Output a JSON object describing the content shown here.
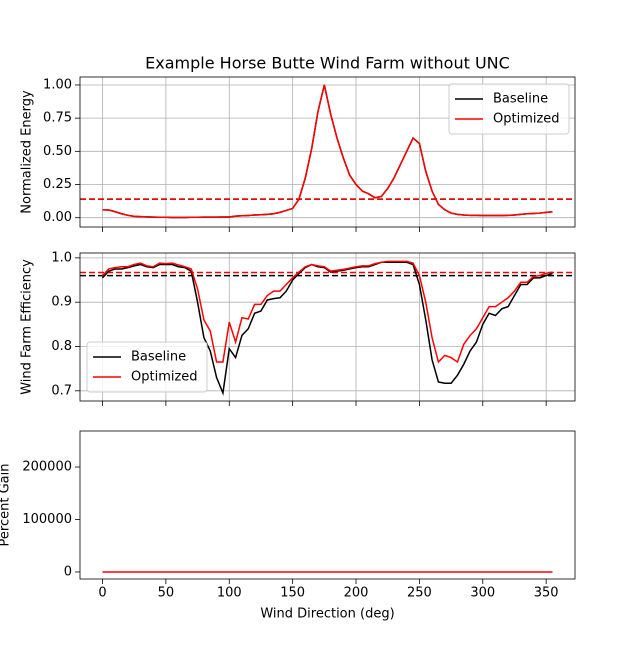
{
  "chart_data": [
    {
      "type": "line",
      "title": "Example Horse Butte Wind Farm without UNC",
      "ylabel": "Normalized Energy",
      "x": [
        0,
        5,
        10,
        15,
        20,
        25,
        30,
        35,
        40,
        45,
        50,
        55,
        60,
        65,
        70,
        75,
        80,
        85,
        90,
        95,
        100,
        105,
        110,
        115,
        120,
        125,
        130,
        135,
        140,
        145,
        150,
        155,
        160,
        165,
        170,
        175,
        180,
        185,
        190,
        195,
        200,
        205,
        210,
        215,
        220,
        225,
        230,
        235,
        240,
        245,
        250,
        255,
        260,
        265,
        270,
        275,
        280,
        285,
        290,
        295,
        300,
        305,
        310,
        315,
        320,
        325,
        330,
        335,
        340,
        345,
        350,
        355
      ],
      "series": [
        {
          "name": "Baseline",
          "color": "#000000",
          "values": [
            0.06,
            0.058,
            0.045,
            0.03,
            0.018,
            0.01,
            0.008,
            0.006,
            0.004,
            0.003,
            0.003,
            0.002,
            0.002,
            0.002,
            0.003,
            0.003,
            0.004,
            0.004,
            0.004,
            0.005,
            0.005,
            0.012,
            0.015,
            0.017,
            0.02,
            0.022,
            0.025,
            0.03,
            0.04,
            0.055,
            0.07,
            0.14,
            0.3,
            0.52,
            0.8,
            1.0,
            0.78,
            0.6,
            0.45,
            0.32,
            0.25,
            0.2,
            0.18,
            0.15,
            0.16,
            0.22,
            0.3,
            0.4,
            0.5,
            0.6,
            0.56,
            0.35,
            0.2,
            0.1,
            0.06,
            0.035,
            0.025,
            0.02,
            0.018,
            0.018,
            0.017,
            0.017,
            0.017,
            0.017,
            0.018,
            0.02,
            0.025,
            0.03,
            0.032,
            0.035,
            0.04,
            0.045
          ]
        },
        {
          "name": "Optimized",
          "color": "#ff0000",
          "values": [
            0.06,
            0.058,
            0.045,
            0.03,
            0.018,
            0.01,
            0.008,
            0.006,
            0.004,
            0.003,
            0.003,
            0.002,
            0.002,
            0.002,
            0.003,
            0.003,
            0.004,
            0.004,
            0.004,
            0.005,
            0.005,
            0.012,
            0.015,
            0.017,
            0.02,
            0.022,
            0.025,
            0.03,
            0.04,
            0.055,
            0.07,
            0.14,
            0.3,
            0.52,
            0.8,
            1.0,
            0.78,
            0.6,
            0.45,
            0.32,
            0.25,
            0.2,
            0.18,
            0.15,
            0.16,
            0.22,
            0.3,
            0.4,
            0.5,
            0.6,
            0.56,
            0.35,
            0.2,
            0.1,
            0.06,
            0.035,
            0.025,
            0.02,
            0.018,
            0.018,
            0.017,
            0.017,
            0.017,
            0.017,
            0.018,
            0.02,
            0.025,
            0.03,
            0.032,
            0.035,
            0.04,
            0.045
          ]
        }
      ],
      "hlines": [
        {
          "value": 0.14,
          "color": "#000000"
        },
        {
          "value": 0.14,
          "color": "#ff0000"
        }
      ],
      "xlim": [
        -17.75,
        372.75
      ],
      "xticks": [
        0,
        50,
        100,
        150,
        200,
        250,
        300,
        350
      ],
      "x_tick_labels": false,
      "ylim": [
        -0.07,
        1.06
      ],
      "yticks": [
        {
          "value": 0,
          "label": "0.00"
        },
        {
          "value": 0.25,
          "label": "0.25"
        },
        {
          "value": 0.5,
          "label": "0.50"
        },
        {
          "value": 0.75,
          "label": "0.75"
        },
        {
          "value": 1,
          "label": "1.00"
        }
      ],
      "grid": true,
      "legend": "upper right"
    },
    {
      "type": "line",
      "ylabel": "Wind Farm Efficiency",
      "x": [
        0,
        5,
        10,
        15,
        20,
        25,
        30,
        35,
        40,
        45,
        50,
        55,
        60,
        65,
        70,
        75,
        80,
        85,
        90,
        95,
        100,
        105,
        110,
        115,
        120,
        125,
        130,
        135,
        140,
        145,
        150,
        155,
        160,
        165,
        170,
        175,
        180,
        185,
        190,
        195,
        200,
        205,
        210,
        215,
        220,
        225,
        230,
        235,
        240,
        245,
        250,
        255,
        260,
        265,
        270,
        275,
        280,
        285,
        290,
        295,
        300,
        305,
        310,
        315,
        320,
        325,
        330,
        335,
        340,
        345,
        350,
        355
      ],
      "series": [
        {
          "name": "Baseline",
          "color": "#000000",
          "values": [
            0.955,
            0.97,
            0.975,
            0.975,
            0.978,
            0.982,
            0.985,
            0.98,
            0.978,
            0.985,
            0.985,
            0.985,
            0.98,
            0.978,
            0.97,
            0.9,
            0.82,
            0.79,
            0.73,
            0.695,
            0.795,
            0.775,
            0.825,
            0.84,
            0.875,
            0.88,
            0.905,
            0.908,
            0.91,
            0.925,
            0.95,
            0.965,
            0.978,
            0.985,
            0.98,
            0.978,
            0.968,
            0.97,
            0.972,
            0.975,
            0.978,
            0.98,
            0.98,
            0.985,
            0.99,
            0.99,
            0.99,
            0.99,
            0.99,
            0.985,
            0.94,
            0.86,
            0.77,
            0.72,
            0.717,
            0.717,
            0.735,
            0.76,
            0.79,
            0.81,
            0.85,
            0.875,
            0.87,
            0.885,
            0.89,
            0.915,
            0.94,
            0.94,
            0.955,
            0.955,
            0.96,
            0.965
          ]
        },
        {
          "name": "Optimized",
          "color": "#ff0000",
          "values": [
            0.96,
            0.975,
            0.978,
            0.98,
            0.98,
            0.985,
            0.988,
            0.982,
            0.98,
            0.988,
            0.987,
            0.988,
            0.984,
            0.98,
            0.975,
            0.93,
            0.86,
            0.835,
            0.765,
            0.765,
            0.855,
            0.81,
            0.865,
            0.862,
            0.895,
            0.895,
            0.915,
            0.925,
            0.925,
            0.94,
            0.955,
            0.968,
            0.98,
            0.985,
            0.982,
            0.98,
            0.97,
            0.972,
            0.974,
            0.977,
            0.98,
            0.982,
            0.982,
            0.987,
            0.99,
            0.992,
            0.992,
            0.992,
            0.992,
            0.988,
            0.96,
            0.9,
            0.82,
            0.765,
            0.78,
            0.775,
            0.765,
            0.805,
            0.825,
            0.84,
            0.865,
            0.89,
            0.89,
            0.9,
            0.91,
            0.925,
            0.945,
            0.945,
            0.958,
            0.96,
            0.965,
            0.968
          ]
        }
      ],
      "hlines": [
        {
          "value": 0.96,
          "color": "#000000"
        },
        {
          "value": 0.967,
          "color": "#ff0000"
        }
      ],
      "xlim": [
        -17.75,
        372.75
      ],
      "xticks": [
        0,
        50,
        100,
        150,
        200,
        250,
        300,
        350
      ],
      "x_tick_labels": false,
      "ylim": [
        0.677,
        1.011
      ],
      "yticks": [
        0.7,
        0.8,
        0.9,
        {
          "value": 1,
          "label": "1.0"
        }
      ],
      "grid": true,
      "legend": "lower left"
    },
    {
      "type": "line",
      "ylabel": "Percent Gain",
      "xlabel": "Wind Direction (deg)",
      "x": [
        0,
        5,
        10,
        15,
        20,
        25,
        30,
        35,
        40,
        45,
        50,
        55,
        60,
        65,
        70,
        75,
        80,
        85,
        90,
        95,
        100,
        105,
        110,
        115,
        120,
        125,
        130,
        135,
        140,
        145,
        150,
        155,
        160,
        165,
        170,
        175,
        180,
        185,
        190,
        195,
        200,
        205,
        210,
        215,
        220,
        225,
        230,
        235,
        240,
        245,
        250,
        255,
        260,
        265,
        270,
        275,
        280,
        285,
        290,
        295,
        300,
        305,
        310,
        315,
        320,
        325,
        330,
        335,
        340,
        345,
        350,
        355
      ],
      "series": [
        {
          "color": "#ff0000",
          "values": [
            0,
            0,
            0,
            0,
            0,
            0,
            0,
            0,
            0,
            0,
            0,
            0,
            0,
            0,
            0,
            0,
            0,
            0,
            0,
            0,
            0,
            0,
            0,
            0,
            0,
            0,
            0,
            0,
            0,
            0,
            0,
            0,
            0,
            0,
            0,
            0,
            0,
            0,
            0,
            0,
            0,
            0,
            0,
            0,
            0,
            0,
            0,
            0,
            0,
            0,
            0,
            0,
            0,
            0,
            0,
            0,
            0,
            0,
            0,
            0,
            0,
            0,
            0,
            0,
            0,
            0,
            0,
            0,
            0,
            0,
            0,
            0
          ]
        }
      ],
      "xlim": [
        -17.75,
        372.75
      ],
      "xticks": [
        0,
        50,
        100,
        150,
        200,
        250,
        300,
        350
      ],
      "x_tick_labels": true,
      "ylim": [
        -13400,
        268600
      ],
      "yticks": [
        0,
        100000,
        200000
      ],
      "grid": false
    }
  ]
}
